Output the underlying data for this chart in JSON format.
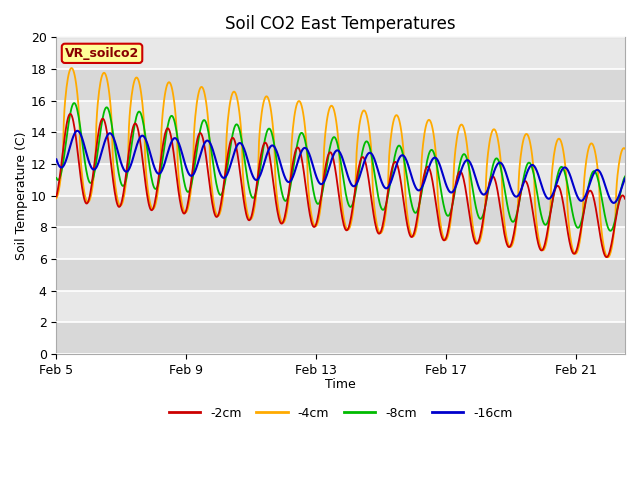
{
  "title": "Soil CO2 East Temperatures",
  "xlabel": "Time",
  "ylabel": "Soil Temperature (C)",
  "ylim": [
    0,
    20
  ],
  "annotation": "VR_soilco2",
  "xtick_labels": [
    "Feb 5",
    "Feb 9",
    "Feb 13",
    "Feb 17",
    "Feb 21"
  ],
  "xtick_positions": [
    0,
    4,
    8,
    12,
    16
  ],
  "colors": {
    "-2cm": "#cc0000",
    "-4cm": "#ffaa00",
    "-8cm": "#00bb00",
    "-16cm": "#0000cc"
  },
  "legend_labels": [
    "-2cm",
    "-4cm",
    "-8cm",
    "-16cm"
  ],
  "plot_bg_light": "#e8e8e8",
  "plot_bg_dark": "#d0d0d0",
  "fig_bg": "#ffffff",
  "grid_color": "#ffffff",
  "annotation_bg": "#ffff99",
  "annotation_border": "#cc0000",
  "annotation_text_color": "#880000",
  "n_days": 17.5,
  "stripe_bands": [
    [
      0,
      2
    ],
    [
      4,
      6
    ],
    [
      8,
      10
    ],
    [
      12,
      14
    ],
    [
      16,
      18
    ]
  ],
  "stripe_color": "#d8d8d8"
}
